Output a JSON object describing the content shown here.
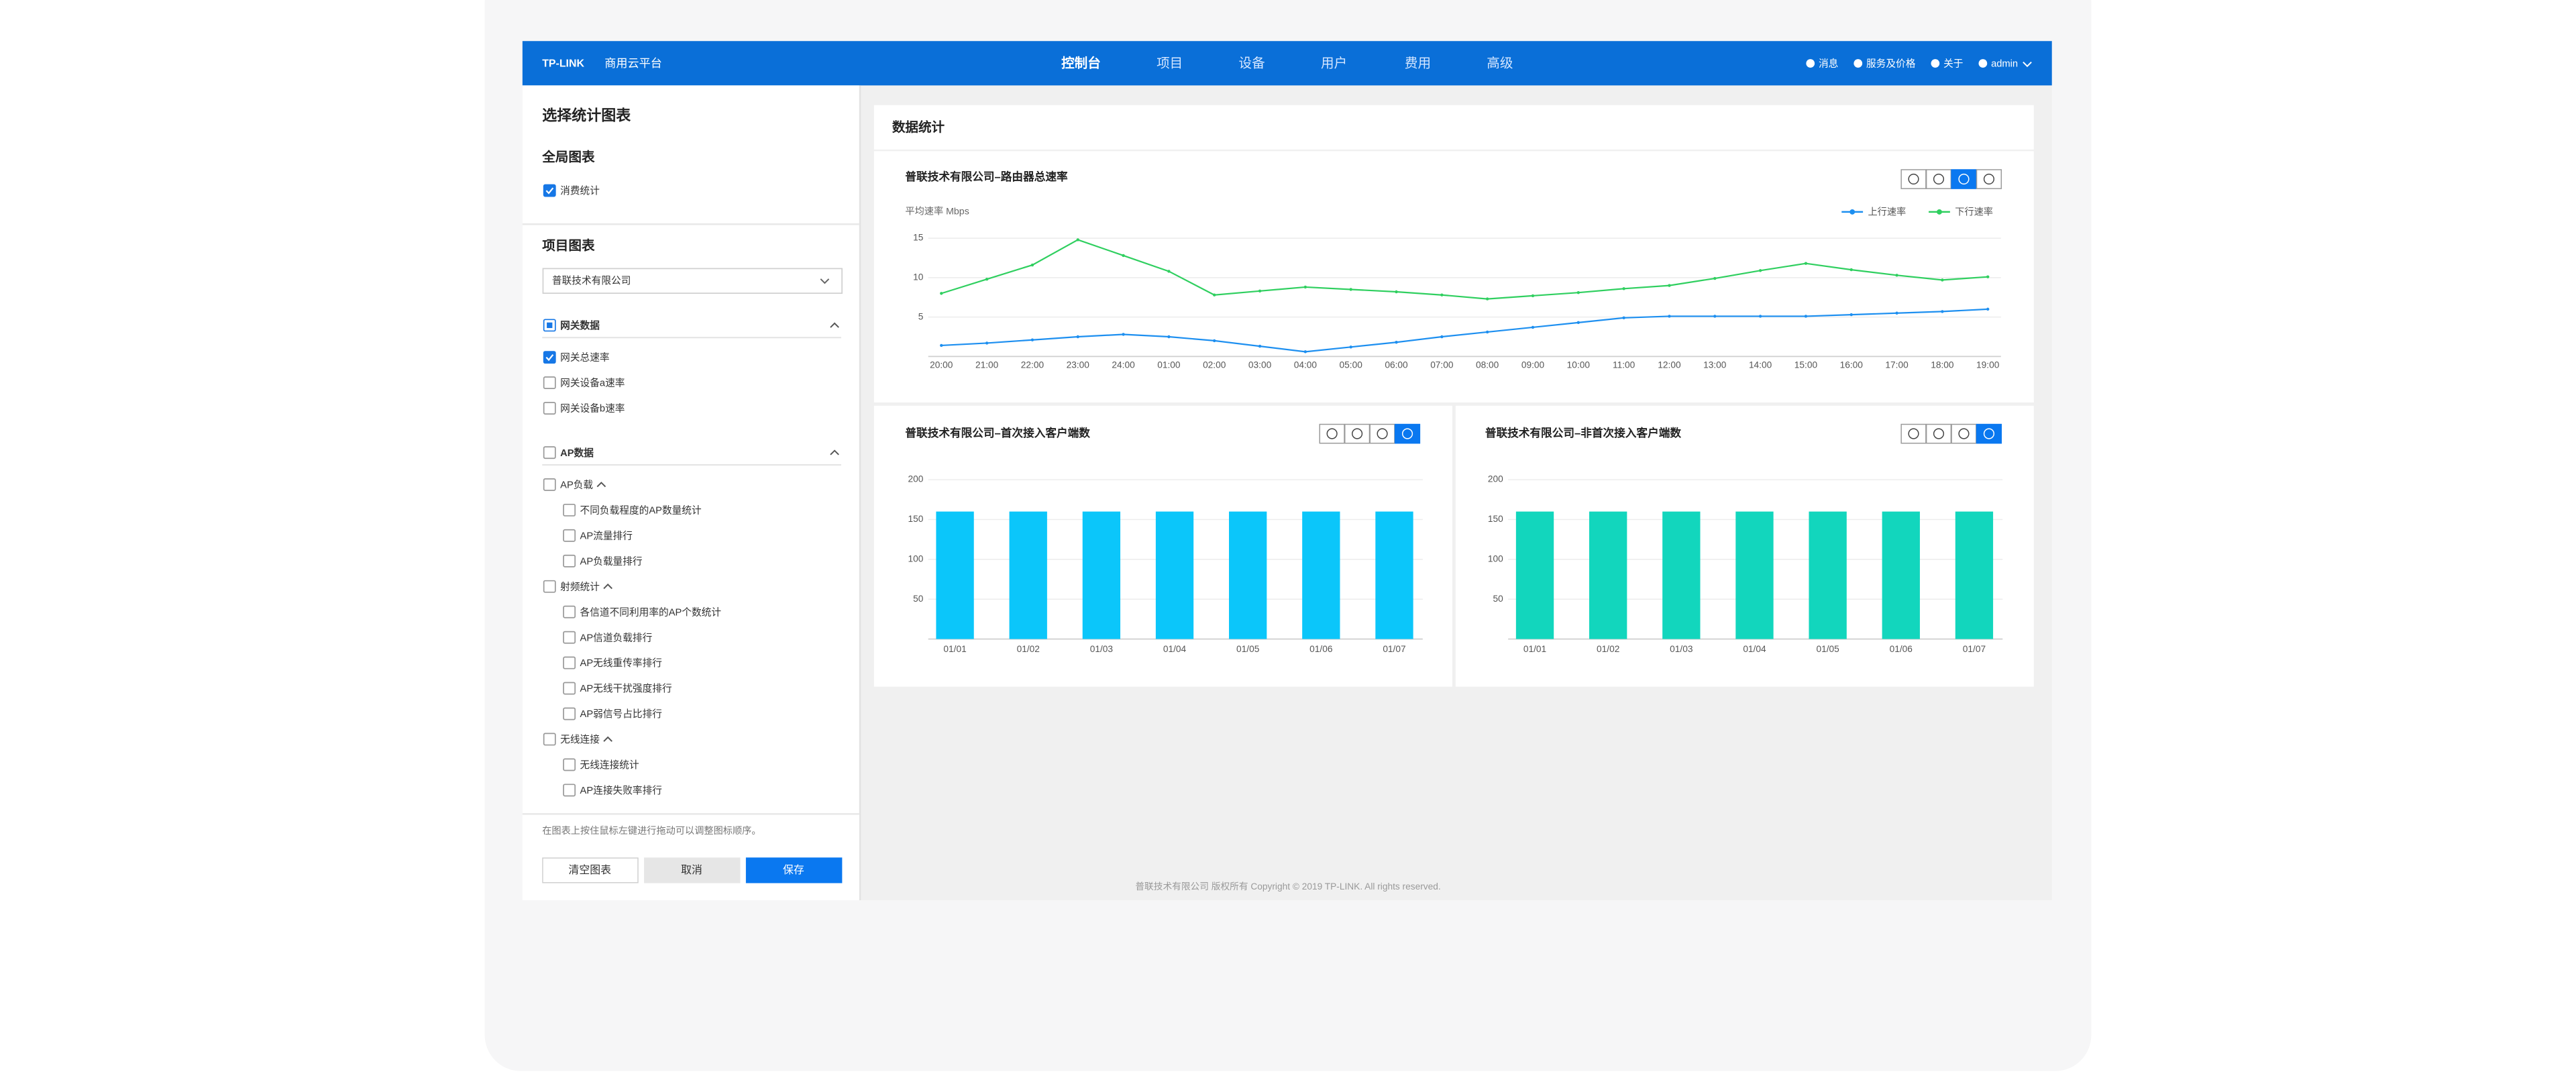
{
  "header": {
    "logo": "TP-LINK",
    "product": "商用云平台",
    "nav": [
      "控制台",
      "项目",
      "设备",
      "用户",
      "费用",
      "高级"
    ],
    "active_nav": 0,
    "right": [
      "消息",
      "服务及价格",
      "关于",
      "admin"
    ]
  },
  "sidebar": {
    "title": "选择统计图表",
    "global": {
      "heading": "全局图表",
      "items": [
        {
          "label": "消费统计",
          "checked": true
        }
      ]
    },
    "project": {
      "heading": "项目图表",
      "select": "普联技术有限公司",
      "items": [
        {
          "label": "网关数据",
          "level": 0,
          "state": "partial"
        },
        {
          "label": "网关总速率",
          "level": 1,
          "state": "checked"
        },
        {
          "label": "网关设备a速率",
          "level": 1,
          "state": "none"
        },
        {
          "label": "网关设备b速率",
          "level": 1,
          "state": "none"
        },
        {
          "label": "AP数据",
          "level": 0,
          "state": "none"
        },
        {
          "label": "AP负载",
          "level": 1,
          "state": "none",
          "expandable": true
        },
        {
          "label": "不同负载程度的AP数量统计",
          "level": 2,
          "state": "none"
        },
        {
          "label": "AP流量排行",
          "level": 2,
          "state": "none"
        },
        {
          "label": "AP负载量排行",
          "level": 2,
          "state": "none"
        },
        {
          "label": "射频统计",
          "level": 1,
          "state": "none",
          "expandable": true
        },
        {
          "label": "各信道不同利用率的AP个数统计",
          "level": 2,
          "state": "none"
        },
        {
          "label": "AP信道负载排行",
          "level": 2,
          "state": "none"
        },
        {
          "label": "AP无线重传率排行",
          "level": 2,
          "state": "none"
        },
        {
          "label": "AP无线干扰强度排行",
          "level": 2,
          "state": "none"
        },
        {
          "label": "AP弱信号占比排行",
          "level": 2,
          "state": "none"
        },
        {
          "label": "无线连接",
          "level": 1,
          "state": "none",
          "expandable": true
        },
        {
          "label": "无线连接统计",
          "level": 2,
          "state": "none"
        },
        {
          "label": "AP连接失败率排行",
          "level": 2,
          "state": "none"
        }
      ]
    },
    "hint": "在图表上按住鼠标左键进行拖动可以调整图标顺序。",
    "buttons": [
      "清空图表",
      "取消",
      "保存"
    ]
  },
  "main": {
    "title": "数据统计",
    "footer": "普联技术有限公司 版权所有 Copyright © 2019 TP-LINK. All rights reserved."
  },
  "chart_data": [
    {
      "type": "line",
      "title": "普联技术有限公司–路由器总速率",
      "y_label": "平均速率 Mbps",
      "categories": [
        "20:00",
        "21:00",
        "22:00",
        "23:00",
        "24:00",
        "01:00",
        "02:00",
        "03:00",
        "04:00",
        "05:00",
        "06:00",
        "07:00",
        "08:00",
        "09:00",
        "10:00",
        "11:00",
        "12:00",
        "13:00",
        "14:00",
        "15:00",
        "16:00",
        "17:00",
        "18:00",
        "19:00"
      ],
      "series": [
        {
          "name": "上行速率",
          "color": "#1d8ff0",
          "values": [
            1.4,
            1.7,
            2.1,
            2.5,
            2.8,
            2.5,
            2,
            1.3,
            0.6,
            1.2,
            1.8,
            2.5,
            3.1,
            3.7,
            4.3,
            4.9,
            5.1,
            5.1,
            5.1,
            5.1,
            5.3,
            5.5,
            5.7,
            6
          ]
        },
        {
          "name": "下行速率",
          "color": "#2fcf5f",
          "values": [
            8,
            9.8,
            11.6,
            14.8,
            12.8,
            10.8,
            7.8,
            8.3,
            8.8,
            8.5,
            8.2,
            7.8,
            7.3,
            7.7,
            8.1,
            8.6,
            9,
            9.9,
            10.9,
            11.8,
            11,
            10.3,
            9.7,
            10.1
          ]
        }
      ],
      "ylim": [
        0,
        15
      ],
      "yticks": [
        5,
        10,
        15
      ],
      "grid": true,
      "legend": "top-right",
      "active_view": 2
    },
    {
      "type": "bar",
      "title": "普联技术有限公司–首次接入客户端数",
      "categories": [
        "01/01",
        "01/02",
        "01/03",
        "01/04",
        "01/05",
        "01/06",
        "01/07"
      ],
      "values": [
        160,
        160,
        160,
        160,
        160,
        160,
        160
      ],
      "color": "#0bc6fa",
      "ylim": [
        0,
        200
      ],
      "yticks": [
        50,
        100,
        150,
        200
      ],
      "grid": true,
      "active_view": 3
    },
    {
      "type": "bar",
      "title": "普联技术有限公司–非首次接入客户端数",
      "categories": [
        "01/01",
        "01/02",
        "01/03",
        "01/04",
        "01/05",
        "01/06",
        "01/07"
      ],
      "values": [
        160,
        160,
        160,
        160,
        160,
        160,
        160
      ],
      "color": "#12d6bd",
      "ylim": [
        0,
        200
      ],
      "yticks": [
        50,
        100,
        150,
        200
      ],
      "grid": true,
      "active_view": 3
    }
  ]
}
